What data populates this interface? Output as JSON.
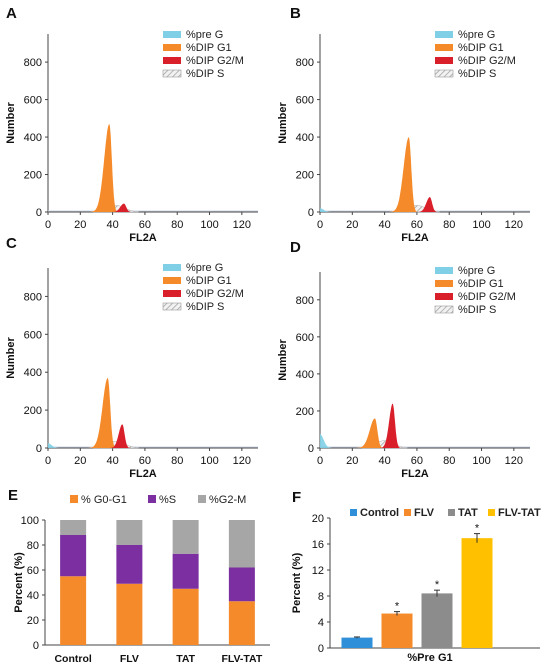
{
  "colors": {
    "pre_g": "#7fcfe6",
    "g1": "#f58a2a",
    "g2m": "#d81f2a",
    "s": "#bfbfbf",
    "purple": "#7b2fa0",
    "gray": "#a6a6a6",
    "blue": "#2f8fd8",
    "darkgray": "#8c8c8c",
    "gold": "#ffc000"
  },
  "chart_data": [
    {
      "panel": "A",
      "type": "area",
      "xlabel": "FL2A",
      "ylabel": "Number",
      "xlim": [
        0,
        130
      ],
      "ylim": [
        0,
        950
      ],
      "xticks": [
        "0",
        "20",
        "40",
        "60",
        "80",
        "100",
        "120"
      ],
      "yticks": [
        "0",
        "200",
        "400",
        "600",
        "800"
      ],
      "legend": [
        "%pre G",
        "%DIP G1",
        "%DIP G2/M",
        "%DIP S"
      ],
      "legend_position": "top-right",
      "peaks": {
        "pre_g": {
          "center": 0,
          "height": 0
        },
        "g1": {
          "center": 38,
          "height": 470
        },
        "g2m": {
          "center": 47,
          "height": 45
        },
        "s": {
          "center": 42,
          "height": 35
        }
      }
    },
    {
      "panel": "B",
      "type": "area",
      "xlabel": "FL2A",
      "ylabel": "Number",
      "xlim": [
        0,
        130
      ],
      "ylim": [
        0,
        950
      ],
      "xticks": [
        "0",
        "20",
        "40",
        "60",
        "80",
        "100",
        "120"
      ],
      "yticks": [
        "0",
        "200",
        "400",
        "600",
        "800"
      ],
      "legend": [
        "%pre G",
        "%DIP G1",
        "%DIP G2/M",
        "%DIP S"
      ],
      "legend_position": "top-right",
      "peaks": {
        "pre_g": {
          "center": 0,
          "height": 20
        },
        "g1": {
          "center": 55,
          "height": 400
        },
        "g2m": {
          "center": 68,
          "height": 80
        },
        "s": {
          "center": 60,
          "height": 35
        }
      }
    },
    {
      "panel": "C",
      "type": "area",
      "xlabel": "FL2A",
      "ylabel": "Number",
      "xlim": [
        0,
        130
      ],
      "ylim": [
        0,
        950
      ],
      "xticks": [
        "0",
        "20",
        "40",
        "60",
        "80",
        "100",
        "120"
      ],
      "yticks": [
        "0",
        "200",
        "400",
        "600",
        "800"
      ],
      "legend": [
        "%pre G",
        "%DIP G1",
        "%DIP G2/M",
        "%DIP S"
      ],
      "legend_position": "top-right",
      "peaks": {
        "pre_g": {
          "center": 0,
          "height": 25
        },
        "g1": {
          "center": 37,
          "height": 370
        },
        "g2m": {
          "center": 46,
          "height": 125
        },
        "s": {
          "center": 42,
          "height": 35
        }
      }
    },
    {
      "panel": "D",
      "type": "area",
      "xlabel": "FL2A",
      "ylabel": "Number",
      "xlim": [
        0,
        130
      ],
      "ylim": [
        0,
        950
      ],
      "xticks": [
        "0",
        "20",
        "40",
        "60",
        "80",
        "100",
        "120"
      ],
      "yticks": [
        "0",
        "200",
        "400",
        "600",
        "800"
      ],
      "legend": [
        "%pre G",
        "%DIP G1",
        "%DIP G2/M",
        "%DIP S"
      ],
      "legend_position": "top-right",
      "peaks": {
        "pre_g": {
          "center": 0,
          "height": 75
        },
        "g1": {
          "center": 34,
          "height": 160
        },
        "g2m": {
          "center": 45,
          "height": 240
        },
        "s": {
          "center": 40,
          "height": 40
        }
      }
    },
    {
      "panel": "E",
      "type": "bar",
      "stacked": true,
      "categories": [
        "Control",
        "FLV",
        "TAT",
        "FLV-TAT"
      ],
      "ylabel": "Percent (%)",
      "ylim": [
        0,
        100
      ],
      "yticks": [
        "0",
        "20",
        "40",
        "60",
        "80",
        "100"
      ],
      "legend_position": "top",
      "series": [
        {
          "name": "% G0-G1",
          "values": [
            55,
            49,
            45,
            35
          ]
        },
        {
          "name": "%S",
          "values": [
            33,
            31,
            28,
            27
          ]
        },
        {
          "name": "%G2-M",
          "values": [
            12,
            20,
            27,
            38
          ]
        }
      ]
    },
    {
      "panel": "F",
      "type": "bar",
      "ylabel": "Percent (%)",
      "xlabel": "%Pre G1",
      "ylim": [
        0,
        20
      ],
      "yticks": [
        "0",
        "4",
        "8",
        "12",
        "16",
        "20"
      ],
      "legend_position": "top",
      "series": [
        {
          "name": "Control",
          "values": [
            1.6
          ],
          "error": 0.1,
          "marker": ""
        },
        {
          "name": "FLV",
          "values": [
            5.3
          ],
          "error": 0.3,
          "marker": "*"
        },
        {
          "name": "TAT",
          "values": [
            8.4
          ],
          "error": 0.5,
          "marker": "*"
        },
        {
          "name": "FLV-TAT",
          "values": [
            16.9
          ],
          "error": 0.7,
          "marker": "*"
        }
      ]
    }
  ]
}
